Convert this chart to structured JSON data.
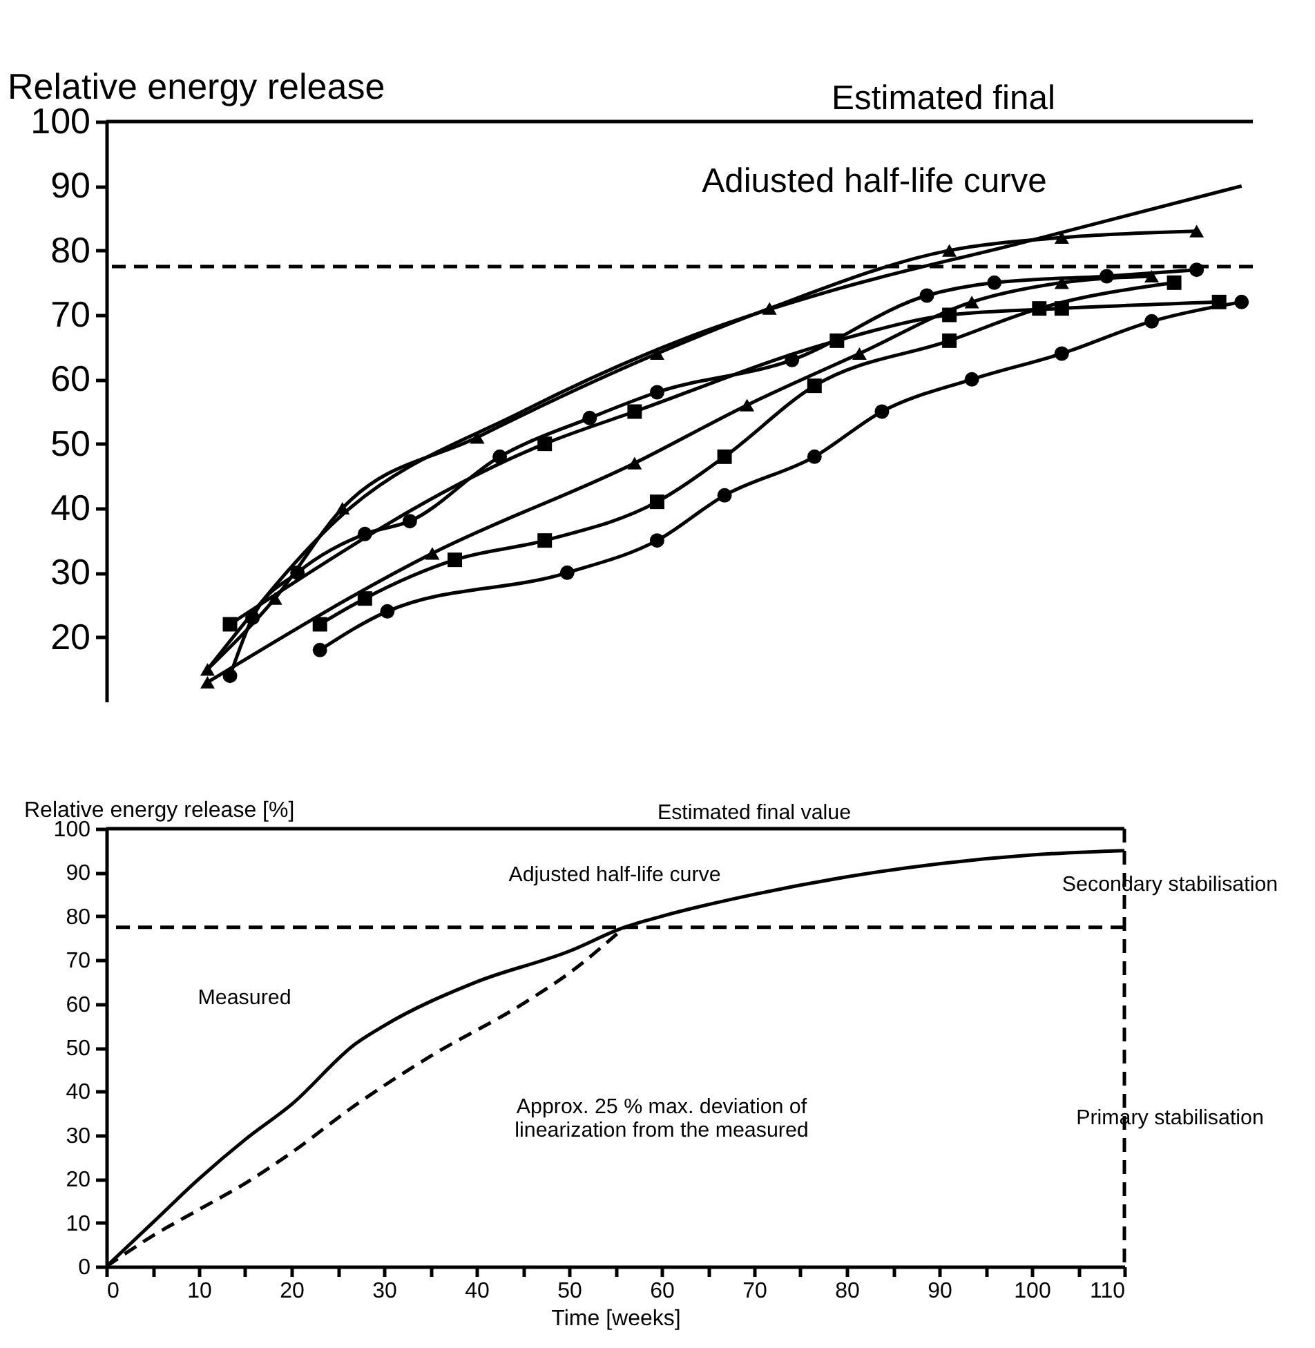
{
  "chart_data": [
    {
      "type": "line",
      "ylabel": "Relative energy release",
      "ylim": [
        10,
        100
      ],
      "yticks": [
        20,
        30,
        40,
        50,
        60,
        70,
        80,
        90,
        100
      ],
      "tick_labels": "y",
      "grid": false,
      "categories": [
        null,
        null,
        null,
        null,
        null,
        null,
        null,
        null,
        null,
        null,
        null,
        null,
        null,
        null,
        null,
        null,
        null,
        null,
        null,
        null,
        null,
        null,
        null,
        null,
        null,
        null,
        null,
        null,
        null,
        null,
        null,
        null,
        null,
        null,
        null,
        null,
        null,
        null,
        null,
        null,
        null,
        null,
        null,
        null,
        null,
        null,
        null,
        null,
        null,
        null,
        null
      ],
      "series": [
        {
          "color": "#000000",
          "marker": "none",
          "values": [
            null,
            null,
            null,
            null,
            15,
            null,
            null,
            null,
            null,
            null,
            39,
            null,
            null,
            null,
            null,
            null,
            null,
            null,
            55,
            null,
            null,
            null,
            null,
            null,
            null,
            66,
            null,
            null,
            null,
            null,
            null,
            null,
            74,
            null,
            null,
            null,
            null,
            null,
            null,
            null,
            81,
            null,
            null,
            null,
            null,
            null,
            null,
            null,
            null,
            null,
            90
          ]
        },
        {
          "color": "#000000",
          "marker": "triangle",
          "values": [
            null,
            null,
            null,
            null,
            15,
            null,
            null,
            26,
            null,
            null,
            40,
            null,
            null,
            null,
            null,
            null,
            51,
            null,
            null,
            null,
            null,
            null,
            null,
            null,
            64,
            null,
            null,
            null,
            null,
            71,
            null,
            null,
            null,
            null,
            null,
            null,
            null,
            80,
            null,
            null,
            null,
            null,
            82,
            null,
            null,
            null,
            null,
            null,
            83,
            null,
            null
          ]
        },
        {
          "color": "#000000",
          "marker": "circle",
          "values": [
            null,
            null,
            null,
            null,
            null,
            14,
            23,
            null,
            30,
            null,
            null,
            36,
            null,
            38,
            null,
            null,
            null,
            48,
            null,
            null,
            null,
            54,
            null,
            null,
            58,
            null,
            null,
            null,
            null,
            null,
            63,
            null,
            null,
            null,
            null,
            null,
            73,
            null,
            null,
            75,
            null,
            null,
            null,
            null,
            76,
            null,
            null,
            null,
            77,
            null,
            null
          ]
        },
        {
          "color": "#000000",
          "marker": "square",
          "values": [
            null,
            null,
            null,
            null,
            null,
            22,
            null,
            null,
            null,
            null,
            null,
            null,
            null,
            null,
            null,
            null,
            null,
            null,
            null,
            50,
            null,
            null,
            null,
            55,
            null,
            null,
            null,
            null,
            null,
            null,
            null,
            null,
            66,
            null,
            null,
            null,
            null,
            70,
            null,
            null,
            null,
            null,
            71,
            null,
            null,
            null,
            null,
            null,
            null,
            72,
            null
          ]
        },
        {
          "color": "#000000",
          "marker": "triangle",
          "values": [
            null,
            null,
            null,
            null,
            13,
            null,
            null,
            null,
            null,
            null,
            null,
            null,
            null,
            null,
            33,
            null,
            null,
            null,
            null,
            null,
            null,
            null,
            null,
            47,
            null,
            null,
            null,
            null,
            56,
            null,
            null,
            null,
            null,
            64,
            null,
            null,
            null,
            null,
            72,
            null,
            null,
            null,
            75,
            null,
            null,
            null,
            76,
            null,
            null,
            null,
            null
          ]
        },
        {
          "color": "#000000",
          "marker": "square",
          "values": [
            null,
            null,
            null,
            null,
            null,
            null,
            null,
            null,
            null,
            22,
            null,
            26,
            null,
            null,
            null,
            32,
            null,
            null,
            null,
            35,
            null,
            null,
            null,
            null,
            41,
            null,
            null,
            48,
            null,
            null,
            null,
            59,
            null,
            null,
            null,
            null,
            null,
            66,
            null,
            null,
            null,
            71,
            null,
            null,
            null,
            null,
            null,
            75,
            null,
            null,
            null
          ]
        },
        {
          "color": "#000000",
          "marker": "circle",
          "values": [
            null,
            null,
            null,
            null,
            null,
            null,
            null,
            null,
            null,
            18,
            null,
            null,
            24,
            null,
            null,
            null,
            null,
            null,
            null,
            null,
            30,
            null,
            null,
            null,
            35,
            null,
            null,
            42,
            null,
            null,
            null,
            48,
            null,
            null,
            55,
            null,
            null,
            null,
            60,
            null,
            null,
            null,
            64,
            null,
            null,
            null,
            69,
            null,
            null,
            null,
            72
          ]
        }
      ],
      "ref_lines": [
        {
          "axis": "y",
          "value": 100,
          "line_style": "solid"
        },
        {
          "axis": "y",
          "value": 77.5,
          "line_style": "dashed"
        }
      ],
      "annotations": [
        "Estimated final",
        "Adiusted half-life curve"
      ]
    },
    {
      "type": "line",
      "ylabel": "Relative energy release [%]",
      "xlabel": "Time [weeks]",
      "xlim": [
        0,
        110
      ],
      "ylim": [
        0,
        100
      ],
      "xticks": [
        0,
        {
          "value": 5,
          "label": null
        },
        10,
        {
          "value": 15,
          "label": null
        },
        20,
        {
          "value": 25,
          "label": null
        },
        30,
        {
          "value": 35,
          "label": null
        },
        40,
        {
          "value": 45,
          "label": null
        },
        50,
        {
          "value": 55,
          "label": null
        },
        60,
        {
          "value": 65,
          "label": null
        },
        70,
        {
          "value": 75,
          "label": null
        },
        80,
        {
          "value": 85,
          "label": null
        },
        90,
        {
          "value": 95,
          "label": null
        },
        100,
        {
          "value": 105,
          "label": null
        },
        110
      ],
      "yticks": [
        0,
        10,
        20,
        30,
        40,
        50,
        60,
        70,
        80,
        90,
        100
      ],
      "grid": false,
      "series": [
        {
          "color": "#000000",
          "marker": "none",
          "line_style": "solid",
          "x": [
            0,
            5,
            10,
            15,
            20,
            27,
            30,
            40,
            50,
            56,
            60,
            70,
            80,
            90,
            100,
            110
          ],
          "values": [
            0,
            10,
            20,
            29,
            37,
            51,
            55,
            65,
            72,
            77.5,
            80,
            85,
            89,
            92,
            94,
            95
          ]
        },
        {
          "color": "#000000",
          "marker": "none",
          "line_style": "dashed",
          "x": [
            0,
            5,
            10,
            15,
            20,
            27,
            35,
            45,
            50,
            56
          ],
          "values": [
            0,
            7,
            13,
            19,
            26,
            37,
            48,
            60,
            67,
            77.5
          ]
        }
      ],
      "ref_lines": [
        {
          "axis": "y",
          "value": 100,
          "line_style": "solid"
        },
        {
          "axis": "y",
          "value": 77.5,
          "line_style": "dashed"
        },
        {
          "axis": "x",
          "value": 110,
          "line_style": "dashed"
        }
      ],
      "annotations": [
        "Estimated final value",
        "Adjusted half-life curve",
        "Measured",
        "Approx. 25 % max. deviation of\nlinearization from the measured",
        "Secondary stabilisation",
        "Primary stabilisation"
      ]
    }
  ]
}
